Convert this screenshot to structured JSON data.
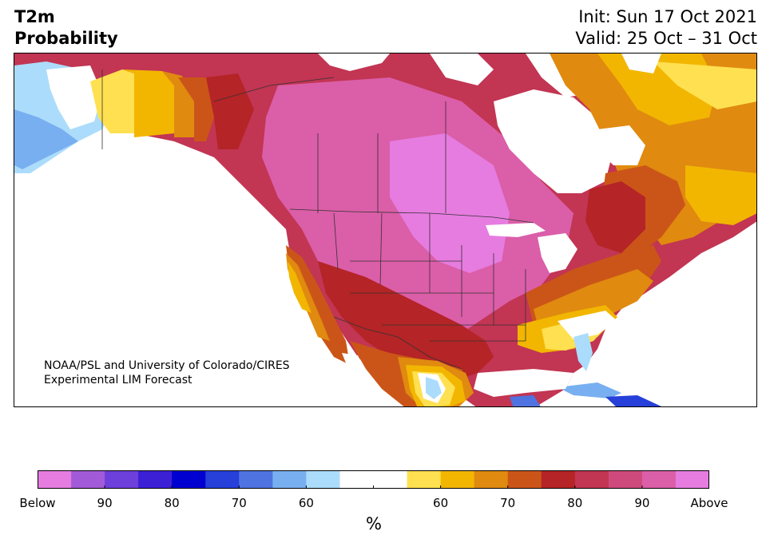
{
  "title": {
    "left_line1": "T2m",
    "left_line2": "Probability",
    "right_line1": "Init: Sun 17 Oct 2021",
    "right_line2": "Valid: 25 Oct – 31 Oct"
  },
  "credit": {
    "line1": "NOAA/PSL and University of Colorado/CIRES",
    "line2": "Experimental LIM Forecast"
  },
  "colorbar": {
    "unit": "%",
    "colors": [
      "#e67ce0",
      "#a25ad9",
      "#6d3fdb",
      "#3c20d6",
      "#0000d0",
      "#2740d9",
      "#4f73e0",
      "#78aff0",
      "#acdcfb",
      "#ffffff",
      "#ffe050",
      "#f2b600",
      "#e08a10",
      "#cb5518",
      "#b52426",
      "#c23553",
      "#cf4a7c",
      "#db5ea8",
      "#e67ce0"
    ],
    "tick_labels": [
      "Below",
      "90",
      "80",
      "70",
      "60",
      "",
      "60",
      "70",
      "80",
      "90",
      "Above"
    ]
  },
  "map": {
    "region": "North America",
    "legend_colors": {
      "above_strong": "#e67ce0",
      "above_90": "#db5ea8",
      "above_80": "#c23553",
      "above_75": "#b52426",
      "above_70": "#cb5518",
      "above_65": "#e08a10",
      "above_60": "#f2b600",
      "above_55": "#ffe050",
      "below_55": "#acdcfb",
      "below_60": "#78aff0",
      "below_70": "#4f73e0",
      "below_75": "#2740d9"
    }
  }
}
